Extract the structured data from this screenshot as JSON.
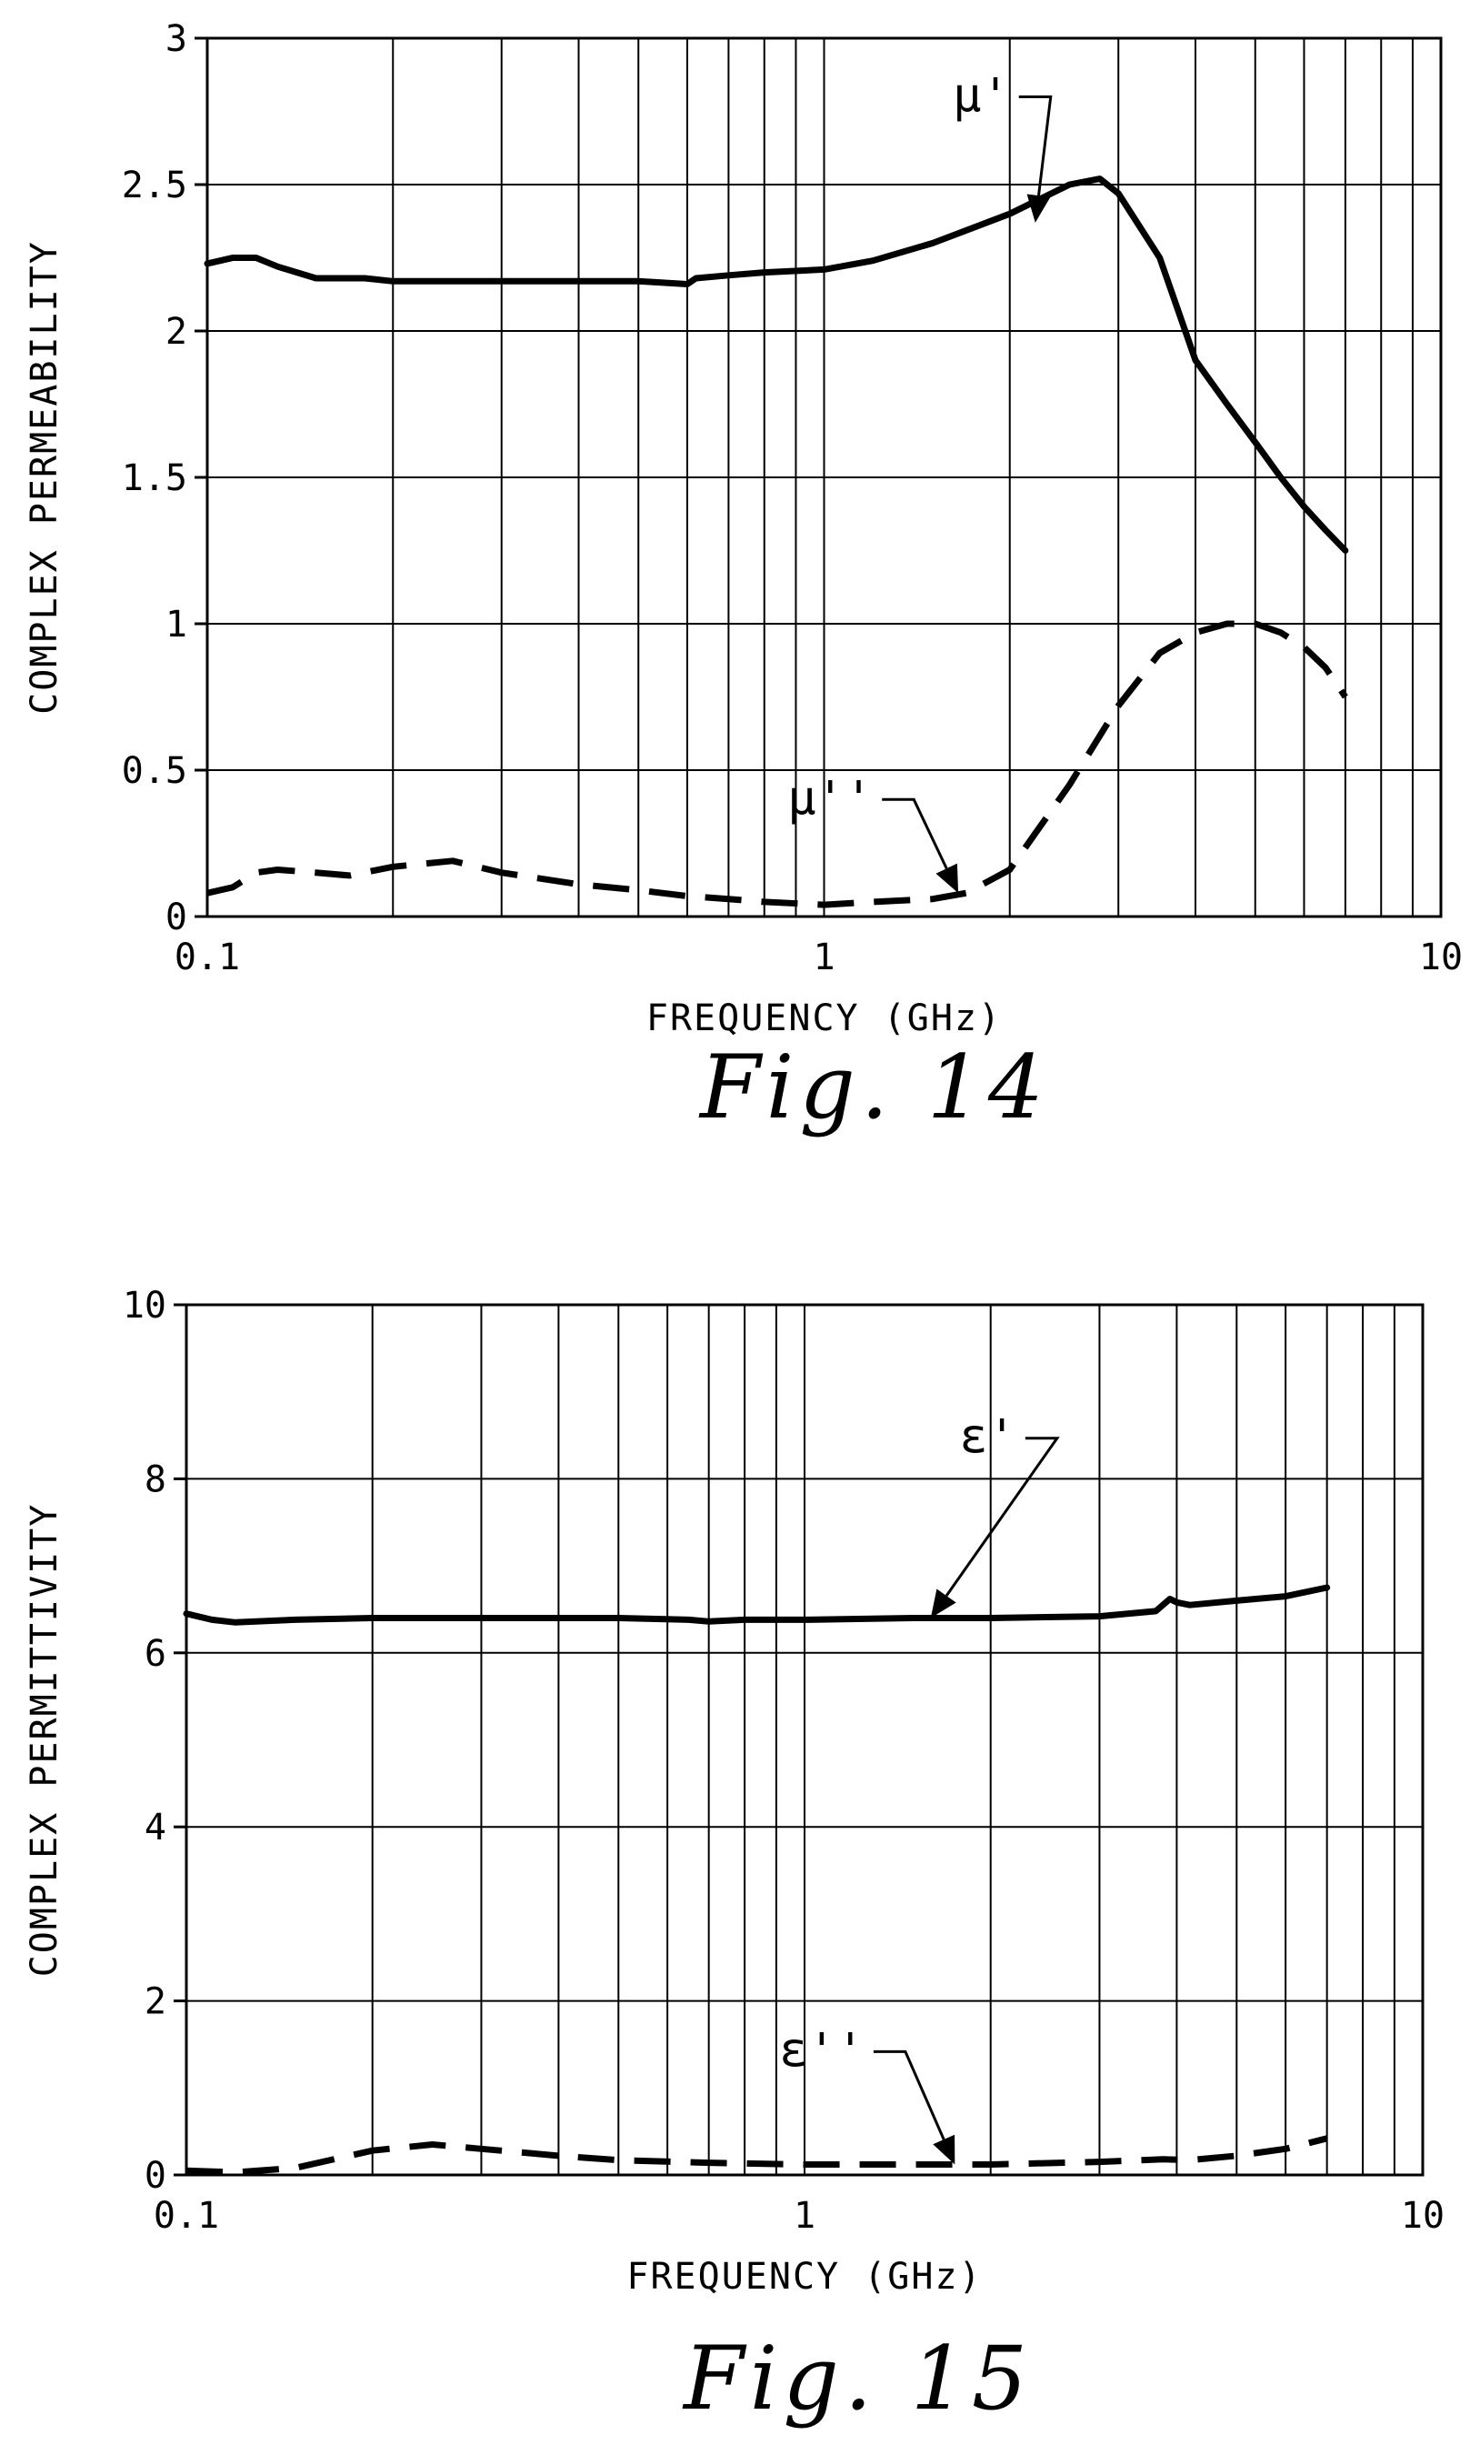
{
  "figures": [
    {
      "caption": "Fig. 14"
    },
    {
      "caption": "Fig. 15"
    }
  ],
  "chart_data": [
    {
      "type": "line",
      "title": "",
      "xlabel": "FREQUENCY (GHz)",
      "ylabel": "COMPLEX PERMEABILITY",
      "xscale": "log",
      "xlim": [
        0.1,
        10
      ],
      "ylim": [
        0,
        3
      ],
      "xticks": [
        0.1,
        1,
        10
      ],
      "xtick_labels": [
        "0.1",
        "1",
        "10"
      ],
      "yticks": [
        0,
        0.5,
        1,
        1.5,
        2,
        2.5,
        3
      ],
      "ytick_labels": [
        "0",
        "0.5",
        "1",
        "1.5",
        "2",
        "2.5",
        "3"
      ],
      "grid": true,
      "legend": "none",
      "series": [
        {
          "name": "μ'",
          "style": "solid",
          "x": [
            0.1,
            0.11,
            0.12,
            0.13,
            0.15,
            0.18,
            0.2,
            0.3,
            0.4,
            0.5,
            0.6,
            0.62,
            0.7,
            0.8,
            1.0,
            1.2,
            1.5,
            2.0,
            2.5,
            2.8,
            3.0,
            3.5,
            4.0,
            4.5,
            5.0,
            5.5,
            6.0,
            6.5,
            7.0
          ],
          "y": [
            2.23,
            2.25,
            2.25,
            2.22,
            2.18,
            2.18,
            2.17,
            2.17,
            2.17,
            2.17,
            2.16,
            2.18,
            2.19,
            2.2,
            2.21,
            2.24,
            2.3,
            2.4,
            2.5,
            2.52,
            2.47,
            2.25,
            1.9,
            1.75,
            1.62,
            1.5,
            1.4,
            1.32,
            1.25
          ]
        },
        {
          "name": "μ''",
          "style": "dashed",
          "x": [
            0.1,
            0.11,
            0.12,
            0.13,
            0.15,
            0.17,
            0.2,
            0.25,
            0.3,
            0.4,
            0.5,
            0.6,
            0.7,
            0.8,
            1.0,
            1.2,
            1.5,
            1.7,
            2.0,
            2.5,
            3.0,
            3.5,
            4.0,
            4.5,
            5.0,
            5.5,
            6.0,
            6.5,
            7.0
          ],
          "y": [
            0.08,
            0.1,
            0.15,
            0.16,
            0.15,
            0.14,
            0.17,
            0.19,
            0.15,
            0.11,
            0.09,
            0.07,
            0.06,
            0.05,
            0.04,
            0.05,
            0.06,
            0.08,
            0.16,
            0.45,
            0.72,
            0.9,
            0.97,
            1.0,
            1.0,
            0.97,
            0.92,
            0.85,
            0.75
          ]
        }
      ],
      "annotations": [
        {
          "text": "μ'",
          "x": 2.0,
          "y": 2.75,
          "arrow_to_x": 2.2,
          "arrow_to_y": 2.37
        },
        {
          "text": "μ''",
          "x": 1.2,
          "y": 0.35,
          "arrow_to_x": 1.65,
          "arrow_to_y": 0.08
        }
      ]
    },
    {
      "type": "line",
      "title": "",
      "xlabel": "FREQUENCY (GHz)",
      "ylabel": "COMPLEX PERMITTIVITY",
      "xscale": "log",
      "xlim": [
        0.1,
        10
      ],
      "ylim": [
        0,
        10
      ],
      "xticks": [
        0.1,
        1,
        10
      ],
      "xtick_labels": [
        "0.1",
        "1",
        "10"
      ],
      "yticks": [
        0,
        2,
        4,
        6,
        8,
        10
      ],
      "ytick_labels": [
        "0",
        "2",
        "4",
        "6",
        "8",
        "10"
      ],
      "grid": true,
      "legend": "none",
      "series": [
        {
          "name": "ε'",
          "style": "solid",
          "x": [
            0.1,
            0.11,
            0.12,
            0.15,
            0.2,
            0.3,
            0.5,
            0.65,
            0.7,
            0.8,
            1.0,
            1.5,
            2.0,
            3.0,
            3.7,
            3.9,
            4.0,
            4.2,
            5.0,
            6.0,
            7.0
          ],
          "y": [
            6.45,
            6.38,
            6.35,
            6.38,
            6.4,
            6.4,
            6.4,
            6.38,
            6.36,
            6.38,
            6.38,
            6.4,
            6.4,
            6.42,
            6.48,
            6.62,
            6.58,
            6.55,
            6.6,
            6.65,
            6.75
          ]
        },
        {
          "name": "ε''",
          "style": "dashed",
          "x": [
            0.1,
            0.12,
            0.15,
            0.2,
            0.25,
            0.3,
            0.4,
            0.5,
            0.7,
            1.0,
            1.5,
            2.0,
            3.0,
            3.8,
            4.2,
            5.0,
            6.0,
            7.0
          ],
          "y": [
            0.05,
            0.03,
            0.08,
            0.28,
            0.35,
            0.3,
            0.22,
            0.17,
            0.14,
            0.12,
            0.12,
            0.12,
            0.15,
            0.18,
            0.17,
            0.22,
            0.3,
            0.42
          ]
        }
      ],
      "annotations": [
        {
          "text": "ε'",
          "x": 2.2,
          "y": 8.3,
          "arrow_to_x": 1.6,
          "arrow_to_y": 6.4
        },
        {
          "text": "ε''",
          "x": 1.25,
          "y": 1.25,
          "arrow_to_x": 1.75,
          "arrow_to_y": 0.12
        }
      ]
    }
  ]
}
